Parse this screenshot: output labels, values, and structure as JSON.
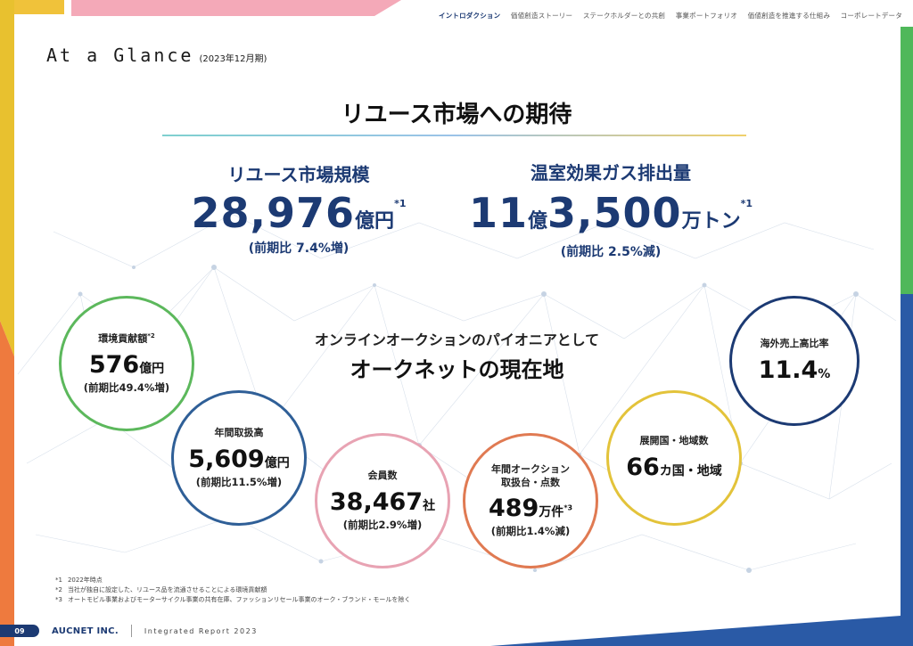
{
  "nav": {
    "items": [
      "イントロダクション",
      "価値創造ストーリー",
      "ステークホルダーとの共創",
      "事業ポートフォリオ",
      "価値創造を推進する仕組み",
      "コーポレートデータ"
    ],
    "active_index": 0
  },
  "header": {
    "title": "At a Glance",
    "period": "(2023年12月期)"
  },
  "main": {
    "heading": "リユース市場への期待",
    "market": {
      "label": "リユース市場規模",
      "value": "28,976",
      "unit": "億円",
      "note_mark": "*1",
      "comparison": "(前期比 7.4%増)"
    },
    "ghg": {
      "label": "温室効果ガス排出量",
      "value1": "11",
      "unit1": "億",
      "value2": "3,500",
      "unit2": "万トン",
      "note_mark": "*1",
      "comparison": "(前期比 2.5%減)"
    },
    "center_sub": "オンラインオークションのパイオニアとして",
    "center_main": "オークネットの現在地"
  },
  "circles": [
    {
      "label": "環境貢献額",
      "note_mark": "*2",
      "value": "576",
      "unit": "億円",
      "comparison": "(前期比49.4%増)",
      "color": "#5cb85c"
    },
    {
      "label": "年間取扱高",
      "value": "5,609",
      "unit": "億円",
      "comparison": "(前期比11.5%増)",
      "color": "#2f5f97"
    },
    {
      "label": "会員数",
      "value": "38,467",
      "unit": "社",
      "comparison": "(前期比2.9%増)",
      "color": "#e8a3b3"
    },
    {
      "label": "年間オークション",
      "label2": "取扱台・点数",
      "value": "489",
      "unit": "万件",
      "note_mark": "*3",
      "comparison": "(前期比1.4%減)",
      "color": "#e07a52"
    },
    {
      "label": "展開国・地域数",
      "value": "66",
      "unit": "カ国・地域",
      "color": "#e3c33a"
    },
    {
      "label": "海外売上高比率",
      "value": "11.4",
      "unit": "%",
      "color": "#1c3a73"
    }
  ],
  "notes": [
    {
      "mark": "*1",
      "text": "2022年時点"
    },
    {
      "mark": "*2",
      "text": "当社が独自に設定した、リユース品を流通させることによる環境貢献額"
    },
    {
      "mark": "*3",
      "text": "オートモビル事業およびモーターサイクル事業の共有在庫、ファッションリセール事業のオーク・ブランド・モールを除く"
    }
  ],
  "footer": {
    "page": "09",
    "company": "AUCNET INC.",
    "report": "Integrated Report 2023"
  },
  "colors": {
    "primary": "#1c3a73",
    "yellow": "#f0c23a",
    "pink": "#f2a6b8",
    "green": "#4fb85a",
    "orange": "#ee7a3e",
    "blue": "#2a5aa6"
  }
}
